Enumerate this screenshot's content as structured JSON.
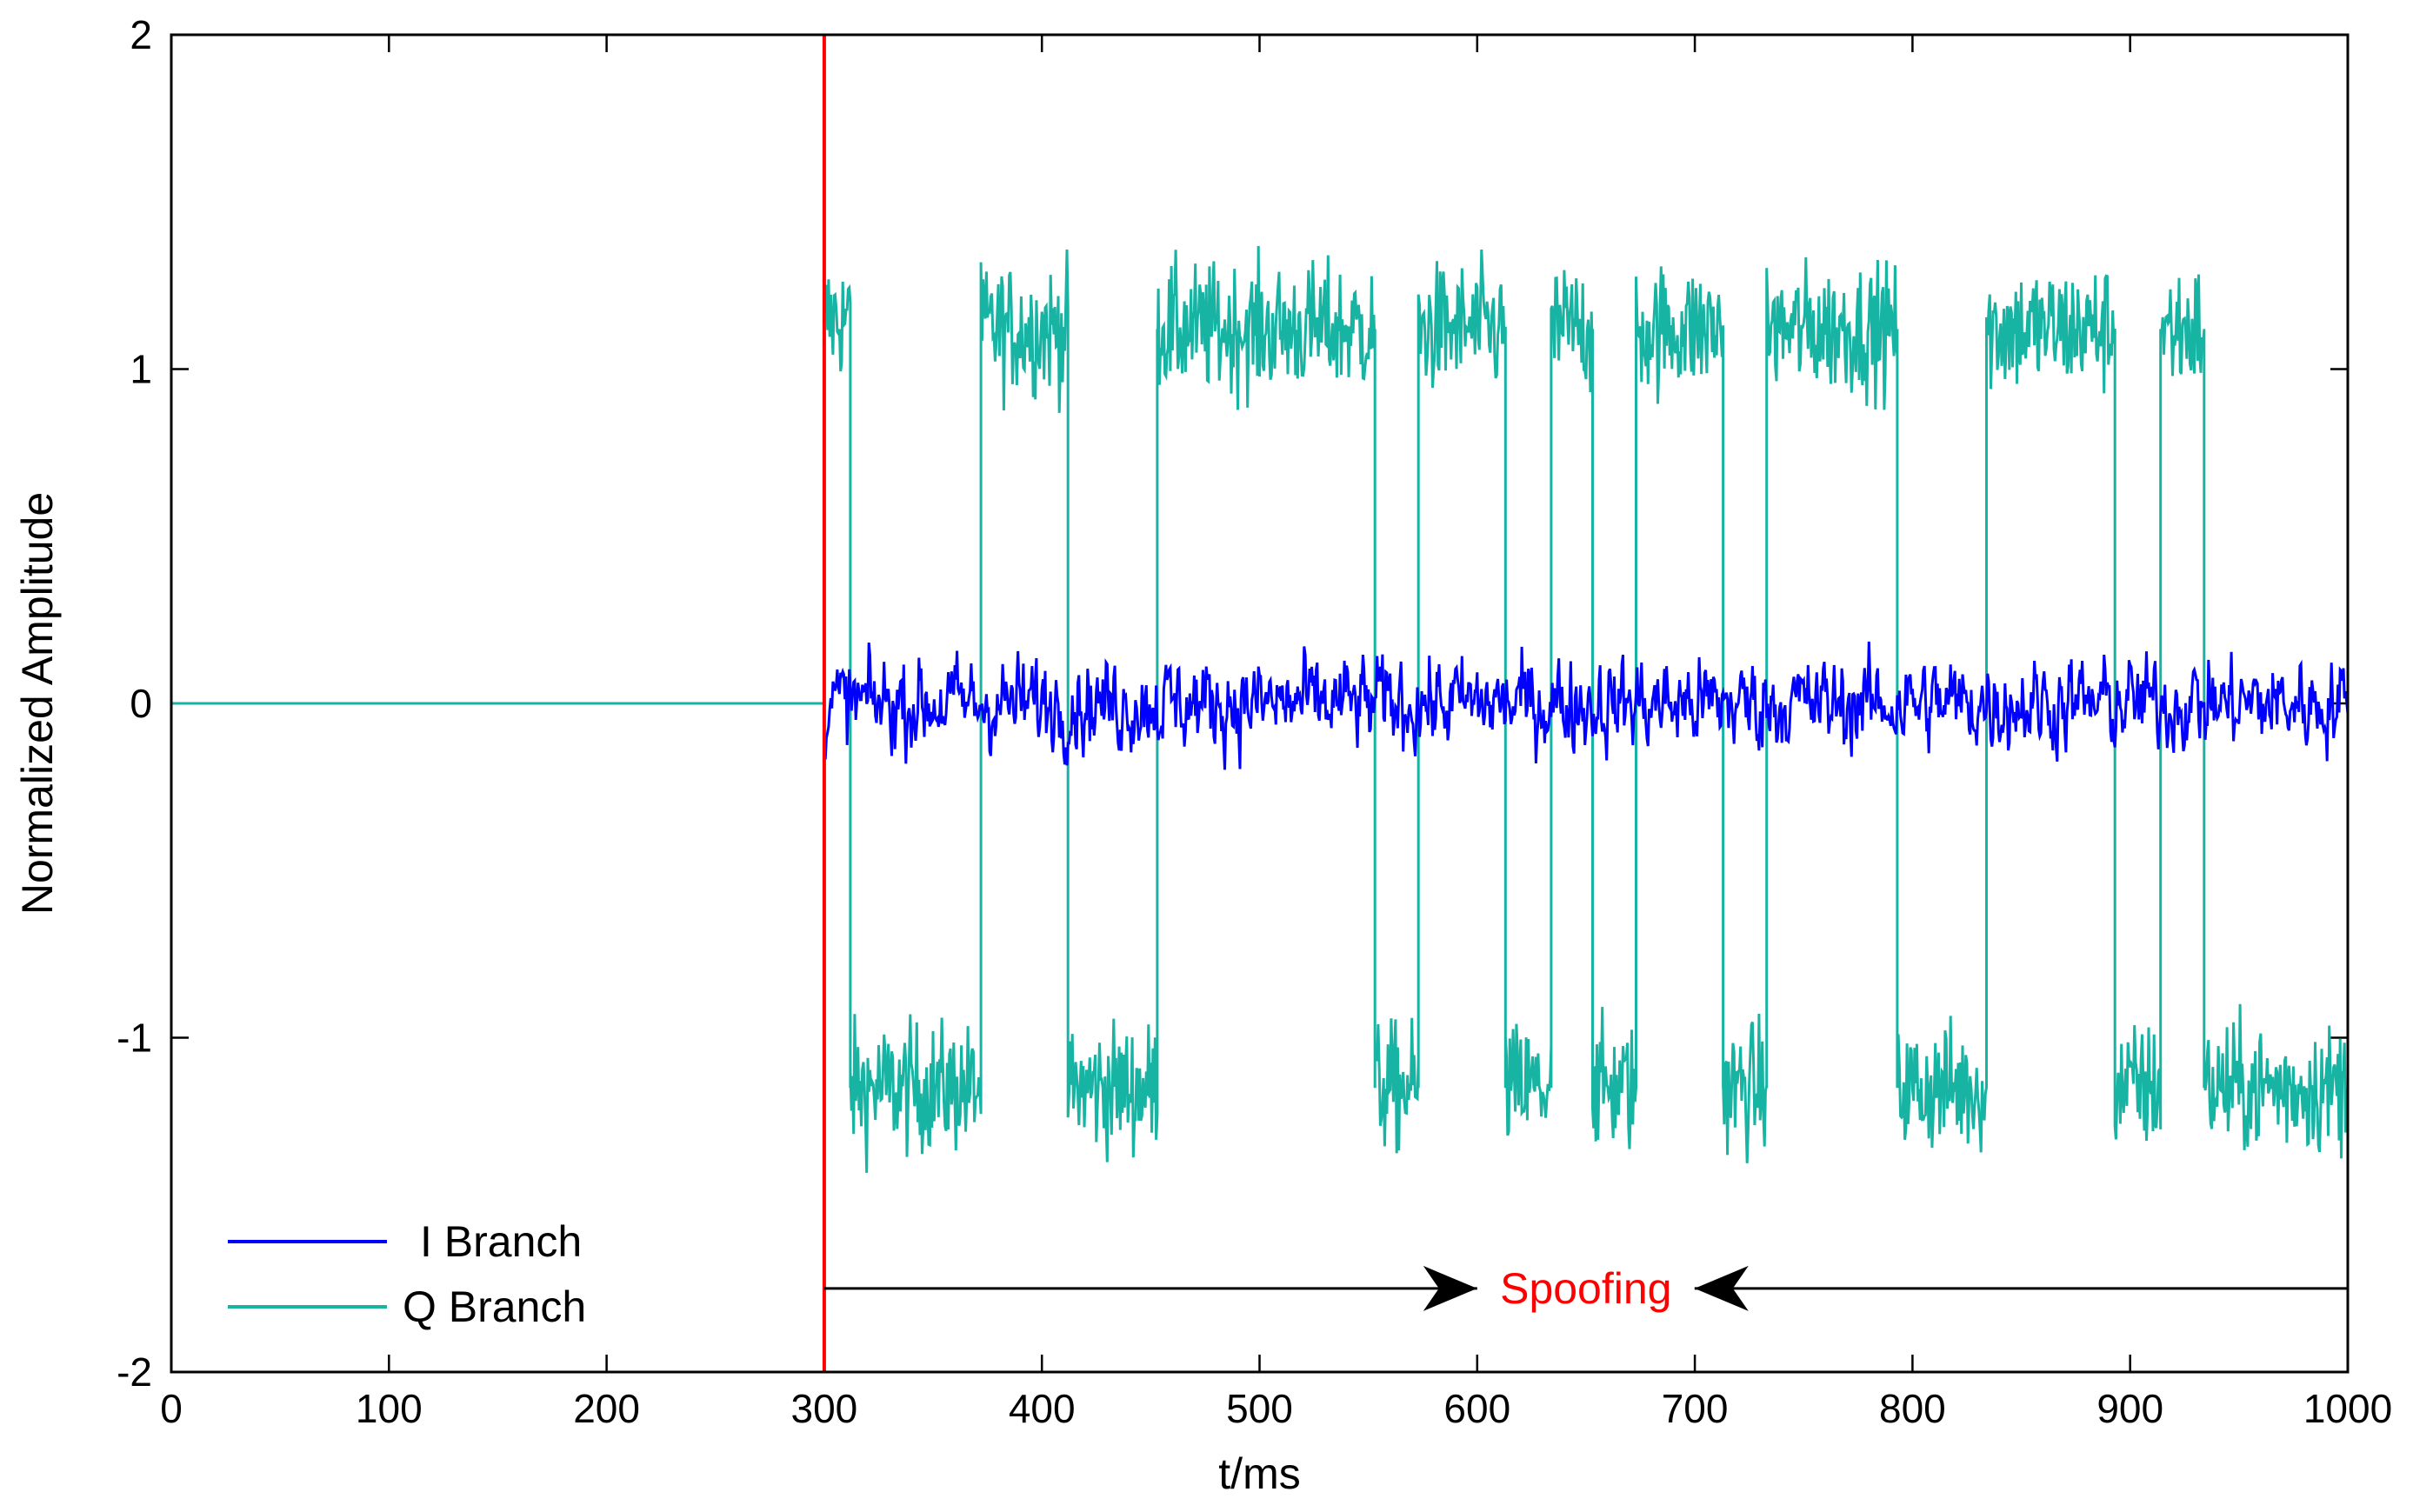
{
  "chart_data": {
    "type": "line",
    "xlabel": "t/ms",
    "ylabel": "Normalized Amplitude",
    "xlim": [
      0,
      1000
    ],
    "ylim": [
      -2,
      2
    ],
    "xticks": [
      0,
      100,
      200,
      300,
      400,
      500,
      600,
      700,
      800,
      900,
      1000
    ],
    "yticks": [
      -2,
      -1,
      0,
      1,
      2
    ],
    "grid": false,
    "legend": {
      "placement": "bottom-left",
      "entries": [
        "I Branch",
        "Q Branch"
      ]
    },
    "series": [
      {
        "name": "I Branch",
        "color": "#0000ff",
        "x_start": 300,
        "x_end": 1000,
        "sample_step": 1,
        "baseline": 0,
        "approx_range": [
          -0.35,
          0.38
        ]
      },
      {
        "name": "Q Branch",
        "color": "#17b3a3",
        "x": [
          0,
          300,
          300,
          312,
          312,
          372,
          372,
          412,
          412,
          453,
          453,
          553,
          553,
          573,
          573,
          613,
          613,
          634,
          634,
          653,
          653,
          673,
          673,
          713,
          713,
          733,
          733,
          793,
          793,
          834,
          834,
          893,
          893,
          914,
          914,
          934,
          934,
          1000
        ],
        "y": [
          0,
          0,
          1.15,
          1.15,
          -1.15,
          -1.15,
          1.12,
          1.12,
          -1.15,
          -1.15,
          1.12,
          1.12,
          -1.15,
          -1.15,
          1.12,
          1.12,
          -1.15,
          -1.15,
          1.12,
          1.12,
          -1.15,
          -1.15,
          1.12,
          1.12,
          -1.15,
          -1.15,
          1.12,
          1.12,
          -1.15,
          -1.15,
          1.12,
          1.12,
          -1.15,
          -1.15,
          1.12,
          1.12,
          -1.15,
          -1.15
        ],
        "noise_amplitude": 0.12
      }
    ],
    "markers": [
      {
        "type": "vertical-line",
        "x": 300,
        "color": "#ff0000"
      }
    ],
    "annotations": [
      {
        "text": "Spoofing",
        "color": "#ff0000",
        "x": 600,
        "y": -1.75,
        "arrow_from_x": 300,
        "arrow_to_x": 1000,
        "arrow_color": "#000000"
      }
    ]
  }
}
